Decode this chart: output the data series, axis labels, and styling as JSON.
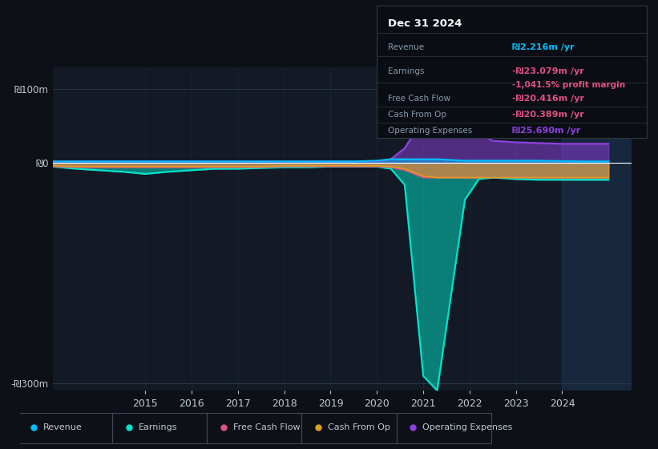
{
  "background_color": "#0d1117",
  "plot_bg_color": "#131a25",
  "ylim": [
    -310,
    130
  ],
  "yticks": [
    -300,
    0,
    100
  ],
  "ytick_labels": [
    "-₪300m",
    "₪0",
    "₪100m"
  ],
  "xlim": [
    2013.0,
    2025.5
  ],
  "xticks": [
    2015,
    2016,
    2017,
    2018,
    2019,
    2020,
    2021,
    2022,
    2023,
    2024
  ],
  "years": [
    2013.0,
    2013.5,
    2014.0,
    2014.5,
    2015.0,
    2015.5,
    2016.0,
    2016.5,
    2017.0,
    2017.5,
    2018.0,
    2018.5,
    2019.0,
    2019.5,
    2020.0,
    2020.3,
    2020.6,
    2021.0,
    2021.3,
    2021.6,
    2021.9,
    2022.2,
    2022.5,
    2023.0,
    2023.5,
    2024.0,
    2024.5,
    2025.0
  ],
  "revenue": [
    2,
    2,
    2,
    2,
    2,
    2,
    2,
    2,
    2,
    2,
    2,
    2,
    2,
    2,
    3,
    5,
    5,
    5,
    5,
    4,
    3,
    3,
    3,
    3,
    3,
    2.5,
    2,
    2
  ],
  "earnings": [
    -5,
    -8,
    -10,
    -12,
    -15,
    -12,
    -10,
    -8,
    -8,
    -7,
    -6,
    -6,
    -5,
    -5,
    -5,
    -8,
    -30,
    -290,
    -310,
    -180,
    -50,
    -22,
    -20,
    -22,
    -23,
    -23,
    -23,
    -23
  ],
  "free_cash_flow": [
    -5,
    -6,
    -6,
    -6,
    -6,
    -6,
    -6,
    -6,
    -6,
    -6,
    -5,
    -5,
    -5,
    -5,
    -5,
    -6,
    -10,
    -20,
    -20,
    -20,
    -20,
    -20,
    -20,
    -20,
    -20,
    -20,
    -20,
    -20
  ],
  "cash_from_op": [
    -4,
    -5,
    -5,
    -5,
    -5,
    -5,
    -5,
    -5,
    -5,
    -5,
    -4,
    -4,
    -4,
    -4,
    -4,
    -5,
    -8,
    -18,
    -20,
    -20,
    -20,
    -20,
    -20,
    -20,
    -20,
    -20,
    -20,
    -20
  ],
  "operating_expenses": [
    2,
    2,
    2,
    2,
    2,
    2,
    2,
    2,
    2,
    2,
    2,
    2,
    2,
    2,
    2,
    5,
    20,
    60,
    80,
    75,
    55,
    40,
    30,
    28,
    27,
    26,
    26,
    26
  ],
  "revenue_color": "#00bfff",
  "earnings_color": "#00e5cc",
  "free_cash_flow_color": "#e05080",
  "cash_from_op_color": "#e0a020",
  "operating_expenses_color": "#9040e0",
  "fill_alpha": 0.5,
  "grid_color": "#2a3a4a",
  "text_color": "#c0c8d0",
  "box_bg": "#0a0e14",
  "box_border": "#303840",
  "info_title": "Dec 31 2024",
  "info_revenue_label": "Revenue",
  "info_revenue_value": "₪2.216m /yr",
  "info_revenue_color": "#00bfff",
  "info_earnings_label": "Earnings",
  "info_earnings_value": "-₪23.079m /yr",
  "info_earnings_color": "#e05080",
  "info_margin_value": "-1,041.5% profit margin",
  "info_margin_color": "#e05080",
  "info_fcf_label": "Free Cash Flow",
  "info_fcf_value": "-₪20.416m /yr",
  "info_fcf_color": "#e05080",
  "info_cop_label": "Cash From Op",
  "info_cop_value": "-₪20.389m /yr",
  "info_cop_color": "#e05080",
  "info_opex_label": "Operating Expenses",
  "info_opex_value": "₪25.690m /yr",
  "info_opex_color": "#9040e0",
  "legend_items": [
    {
      "label": "Revenue",
      "color": "#00bfff"
    },
    {
      "label": "Earnings",
      "color": "#00e5cc"
    },
    {
      "label": "Free Cash Flow",
      "color": "#e05080"
    },
    {
      "label": "Cash From Op",
      "color": "#e0a020"
    },
    {
      "label": "Operating Expenses",
      "color": "#9040e0"
    }
  ],
  "zero_line_color": "#ffffff",
  "highlight_x_start": 2024.0,
  "highlight_x_end": 2025.5,
  "highlight_color": "#1a3050"
}
